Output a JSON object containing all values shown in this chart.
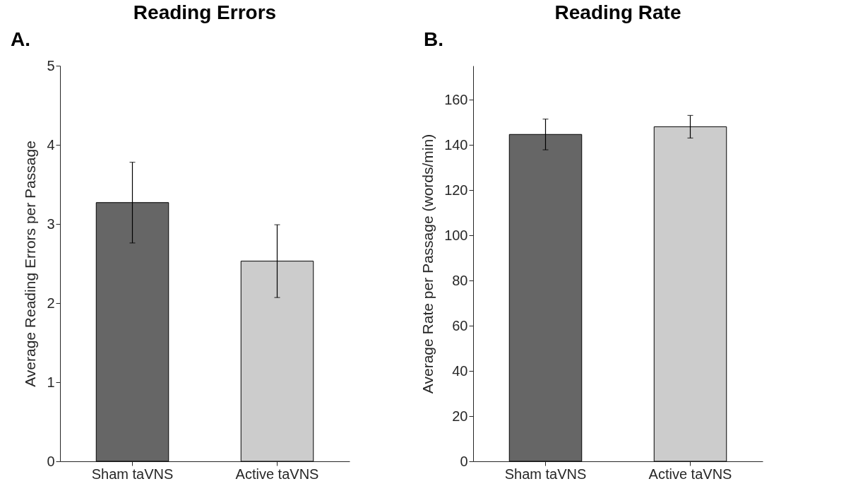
{
  "chart_data": [
    {
      "type": "bar",
      "title": "Reading Errors",
      "ylabel": "Average Reading Errors per Passage",
      "categories": [
        "Sham taVNS",
        "Active taVNS"
      ],
      "values": [
        3.27,
        2.53
      ],
      "errors": [
        0.51,
        0.46
      ],
      "colors": [
        "#666666",
        "#cccccc"
      ],
      "ylim": [
        0,
        5
      ],
      "yticks": [
        0,
        1,
        2,
        3,
        4,
        5
      ],
      "grid": false,
      "annotations": [
        "A."
      ]
    },
    {
      "type": "bar",
      "title": "Reading Rate",
      "ylabel": "Average Rate per Passage (words/min)",
      "categories": [
        "Sham taVNS",
        "Active taVNS"
      ],
      "values": [
        144.6,
        148.0
      ],
      "errors": [
        6.8,
        5.0
      ],
      "colors": [
        "#666666",
        "#cccccc"
      ],
      "ylim": [
        0,
        175
      ],
      "yticks": [
        0,
        20,
        40,
        60,
        80,
        100,
        120,
        140,
        160
      ],
      "grid": false,
      "annotations": [
        "B."
      ]
    }
  ]
}
